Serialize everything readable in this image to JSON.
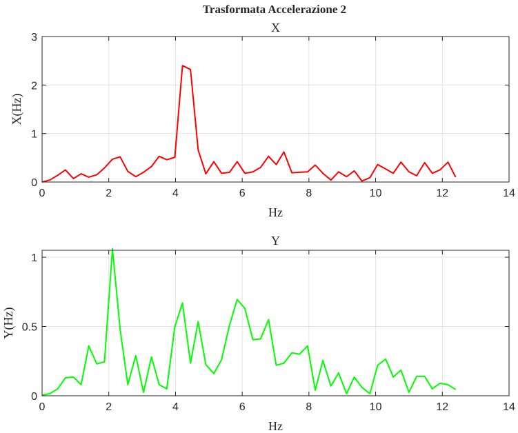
{
  "figure": {
    "title": "Trasformata Accelerazione 2"
  },
  "chart_data": [
    {
      "type": "line",
      "title": "X",
      "xlabel": "Hz",
      "ylabel": "X(Hz)",
      "xlim": [
        0,
        14
      ],
      "ylim": [
        0,
        3
      ],
      "xticks": [
        0,
        2,
        4,
        6,
        8,
        10,
        12,
        14
      ],
      "yticks": [
        0,
        1,
        2,
        3
      ],
      "xtick_labels": [
        "0",
        "2",
        "4",
        "6",
        "8",
        "10",
        "12",
        "14"
      ],
      "ytick_labels": [
        "0",
        "1",
        "2",
        "3"
      ],
      "grid": true,
      "series": [
        {
          "color": "#ff0000",
          "x": [
            0,
            0.23,
            0.47,
            0.7,
            0.94,
            1.17,
            1.4,
            1.64,
            1.87,
            2.11,
            2.34,
            2.57,
            2.81,
            3.04,
            3.28,
            3.51,
            3.74,
            3.98,
            4.21,
            4.45,
            4.68,
            4.91,
            5.15,
            5.38,
            5.62,
            5.85,
            6.08,
            6.32,
            6.55,
            6.79,
            7.02,
            7.25,
            7.49,
            7.72,
            7.96,
            8.19,
            8.42,
            8.66,
            8.89,
            9.13,
            9.36,
            9.59,
            9.83,
            10.06,
            10.3,
            10.53,
            10.76,
            11.0,
            11.23,
            11.47,
            11.7,
            11.93,
            12.17,
            12.4
          ],
          "y": [
            0.0,
            0.04,
            0.14,
            0.25,
            0.07,
            0.17,
            0.1,
            0.15,
            0.29,
            0.47,
            0.52,
            0.22,
            0.11,
            0.2,
            0.32,
            0.53,
            0.46,
            0.51,
            2.4,
            2.32,
            0.66,
            0.17,
            0.42,
            0.18,
            0.2,
            0.42,
            0.18,
            0.21,
            0.3,
            0.53,
            0.36,
            0.62,
            0.19,
            0.2,
            0.21,
            0.35,
            0.18,
            0.04,
            0.21,
            0.11,
            0.23,
            0.02,
            0.09,
            0.36,
            0.27,
            0.18,
            0.41,
            0.21,
            0.13,
            0.4,
            0.18,
            0.25,
            0.41,
            0.1
          ]
        }
      ]
    },
    {
      "type": "line",
      "title": "Y",
      "xlabel": "Hz",
      "ylabel": "Y(Hz)",
      "xlim": [
        0,
        14
      ],
      "ylim": [
        0,
        1.05
      ],
      "xticks": [
        0,
        2,
        4,
        6,
        8,
        10,
        12,
        14
      ],
      "yticks": [
        0,
        0.5,
        1
      ],
      "xtick_labels": [
        "0",
        "2",
        "4",
        "6",
        "8",
        "10",
        "12",
        "14"
      ],
      "ytick_labels": [
        "0",
        "0.5",
        "1"
      ],
      "grid": true,
      "series": [
        {
          "color": "#00ff00",
          "x": [
            0,
            0.23,
            0.47,
            0.7,
            0.94,
            1.17,
            1.4,
            1.64,
            1.87,
            2.11,
            2.34,
            2.57,
            2.81,
            3.04,
            3.28,
            3.51,
            3.74,
            3.98,
            4.21,
            4.45,
            4.68,
            4.91,
            5.15,
            5.38,
            5.62,
            5.85,
            6.08,
            6.32,
            6.55,
            6.79,
            7.02,
            7.25,
            7.49,
            7.72,
            7.96,
            8.19,
            8.42,
            8.66,
            8.89,
            9.13,
            9.36,
            9.59,
            9.83,
            10.06,
            10.3,
            10.53,
            10.76,
            11.0,
            11.23,
            11.47,
            11.7,
            11.93,
            12.17,
            12.4
          ],
          "y": [
            0.005,
            0.015,
            0.05,
            0.13,
            0.135,
            0.08,
            0.36,
            0.23,
            0.245,
            1.06,
            0.48,
            0.08,
            0.29,
            0.025,
            0.28,
            0.08,
            0.05,
            0.5,
            0.67,
            0.235,
            0.535,
            0.225,
            0.16,
            0.26,
            0.51,
            0.695,
            0.63,
            0.405,
            0.41,
            0.55,
            0.22,
            0.235,
            0.31,
            0.3,
            0.36,
            0.04,
            0.255,
            0.07,
            0.165,
            0.015,
            0.135,
            0.06,
            0.015,
            0.22,
            0.265,
            0.135,
            0.185,
            0.025,
            0.14,
            0.14,
            0.05,
            0.09,
            0.08,
            0.045
          ]
        }
      ]
    }
  ]
}
